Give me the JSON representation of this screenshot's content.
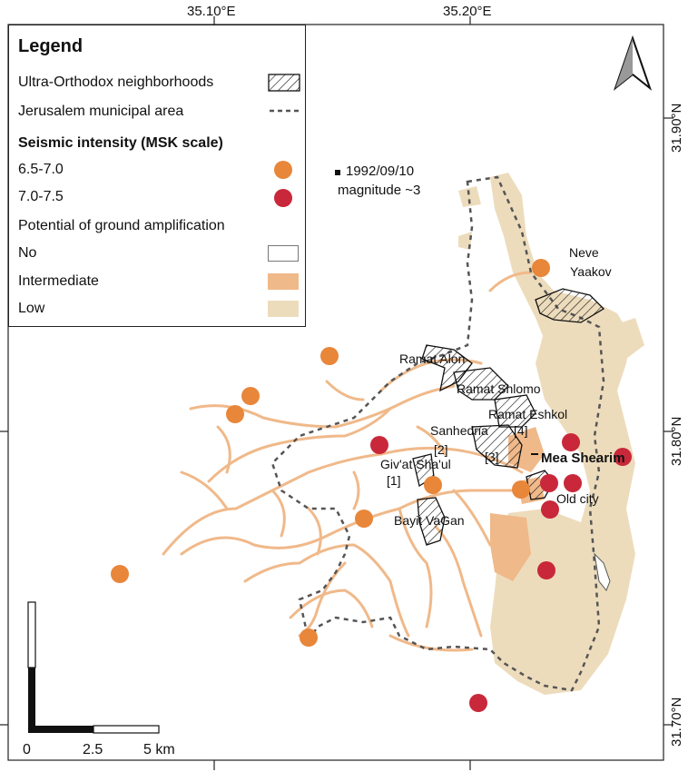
{
  "coords": {
    "top": [
      "35.10°E",
      "35.20°E"
    ],
    "right": [
      "31.90°N",
      "31.80°N",
      "31.70°N"
    ]
  },
  "legend": {
    "title": "Legend",
    "rows": {
      "ultra_orthodox": "Ultra-Orthodox neighborhoods",
      "municipal": "Jerusalem municipal area",
      "seismic_title": "Seismic intensity (MSK scale)",
      "i65": "6.5-7.0",
      "i70": "7.0-7.5",
      "amp_title": "Potential of ground amplification",
      "no": "No",
      "intermediate": "Intermediate",
      "low": "Low"
    }
  },
  "colors": {
    "orange_dot": "#e8863a",
    "red_dot": "#c8283a",
    "intermediate": "#f0b98a",
    "low": "#eddcbc",
    "boundary": "#555555"
  },
  "event": {
    "date": "1992/09/10",
    "magnitude": "magnitude ~3"
  },
  "labels": {
    "neve": "Neve",
    "yaakov": "Yaakov",
    "ramat_alon": "Ramat Alon",
    "ramat_shlomo": "Ramat Shlomo",
    "ramat_eshkol": "Ramat Eshkol",
    "sanhedria": "Sanhedria",
    "n4": "[4]",
    "n2": "[2]",
    "n3": "[3]",
    "mea_shearim": "Mea Shearim",
    "givat_shaul": "Giv'at Sha'ul",
    "n1": "[1]",
    "old_city": "Old city",
    "bayit_vagan": "Bayit VaGan"
  },
  "scalebar": {
    "ticks": [
      "0",
      "2.5",
      "5 km"
    ]
  },
  "north_arrow": "north-arrow-icon"
}
